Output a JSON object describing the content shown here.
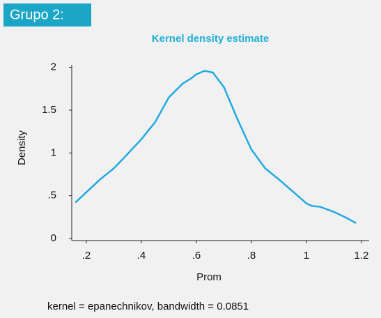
{
  "header": {
    "label": "Grupo 2:"
  },
  "chart_data": {
    "type": "line",
    "title": "Kernel density estimate",
    "x_label": "Prom",
    "y_label": "Density",
    "note": "kernel = epanechnikov, bandwidth = 0.0851",
    "x": [
      0.16,
      0.2,
      0.25,
      0.3,
      0.33,
      0.4,
      0.45,
      0.5,
      0.55,
      0.58,
      0.6,
      0.63,
      0.66,
      0.7,
      0.75,
      0.8,
      0.85,
      0.9,
      0.95,
      1.0,
      1.02,
      1.05,
      1.1,
      1.14,
      1.18
    ],
    "series": [
      {
        "name": "Density",
        "color": "#22a9e2",
        "values": [
          0.42,
          0.54,
          0.69,
          0.82,
          0.92,
          1.16,
          1.36,
          1.65,
          1.81,
          1.87,
          1.92,
          1.96,
          1.94,
          1.77,
          1.39,
          1.04,
          0.82,
          0.69,
          0.55,
          0.41,
          0.38,
          0.37,
          0.31,
          0.25,
          0.18
        ]
      }
    ],
    "xlim": [
      0.147,
      1.228
    ],
    "ylim": [
      -0.025,
      2.03
    ],
    "xticks": [
      {
        "value": 0.2,
        "label": ".2"
      },
      {
        "value": 0.4,
        "label": ".4"
      },
      {
        "value": 0.6,
        "label": ".6"
      },
      {
        "value": 0.8,
        "label": ".8"
      },
      1,
      1.2
    ],
    "yticks": [
      0,
      {
        "value": 0.5,
        "label": ".5"
      },
      1,
      1.5,
      2
    ]
  }
}
